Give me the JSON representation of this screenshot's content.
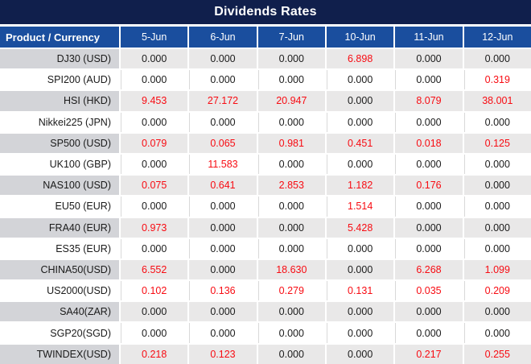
{
  "title": "Dividends Rates",
  "table": {
    "product_header": "Product / Currency",
    "date_columns": [
      "5-Jun",
      "6-Jun",
      "7-Jun",
      "10-Jun",
      "11-Jun",
      "12-Jun"
    ],
    "rows": [
      {
        "product": "DJ30 (USD)",
        "values": [
          "0.000",
          "0.000",
          "0.000",
          "6.898",
          "0.000",
          "0.000"
        ]
      },
      {
        "product": "SPI200 (AUD)",
        "values": [
          "0.000",
          "0.000",
          "0.000",
          "0.000",
          "0.000",
          "0.319"
        ]
      },
      {
        "product": "HSI (HKD)",
        "values": [
          "9.453",
          "27.172",
          "20.947",
          "0.000",
          "8.079",
          "38.001"
        ]
      },
      {
        "product": "Nikkei225 (JPN)",
        "values": [
          "0.000",
          "0.000",
          "0.000",
          "0.000",
          "0.000",
          "0.000"
        ]
      },
      {
        "product": "SP500 (USD)",
        "values": [
          "0.079",
          "0.065",
          "0.981",
          "0.451",
          "0.018",
          "0.125"
        ]
      },
      {
        "product": "UK100 (GBP)",
        "values": [
          "0.000",
          "11.583",
          "0.000",
          "0.000",
          "0.000",
          "0.000"
        ]
      },
      {
        "product": "NAS100 (USD)",
        "values": [
          "0.075",
          "0.641",
          "2.853",
          "1.182",
          "0.176",
          "0.000"
        ]
      },
      {
        "product": "EU50 (EUR)",
        "values": [
          "0.000",
          "0.000",
          "0.000",
          "1.514",
          "0.000",
          "0.000"
        ]
      },
      {
        "product": "FRA40 (EUR)",
        "values": [
          "0.973",
          "0.000",
          "0.000",
          "5.428",
          "0.000",
          "0.000"
        ]
      },
      {
        "product": "ES35 (EUR)",
        "values": [
          "0.000",
          "0.000",
          "0.000",
          "0.000",
          "0.000",
          "0.000"
        ]
      },
      {
        "product": "CHINA50(USD)",
        "values": [
          "6.552",
          "0.000",
          "18.630",
          "0.000",
          "6.268",
          "1.099"
        ]
      },
      {
        "product": "US2000(USD)",
        "values": [
          "0.102",
          "0.136",
          "0.279",
          "0.131",
          "0.035",
          "0.209"
        ]
      },
      {
        "product": "SA40(ZAR)",
        "values": [
          "0.000",
          "0.000",
          "0.000",
          "0.000",
          "0.000",
          "0.000"
        ]
      },
      {
        "product": "SGP20(SGD)",
        "values": [
          "0.000",
          "0.000",
          "0.000",
          "0.000",
          "0.000",
          "0.000"
        ]
      },
      {
        "product": "TWINDEX(USD)",
        "values": [
          "0.218",
          "0.123",
          "0.000",
          "0.000",
          "0.217",
          "0.255"
        ]
      }
    ]
  },
  "colors": {
    "title_bg": "#101f4c",
    "header_bg": "#1a4e9e",
    "header_text": "#ffffff",
    "stripe_label_bg": "#d3d4d8",
    "stripe_value_bg": "#e9e8e8",
    "plain_row_bg": "#ffffff",
    "positive_value_text": "#f80b12",
    "zero_value_text": "#1a1a1a"
  }
}
